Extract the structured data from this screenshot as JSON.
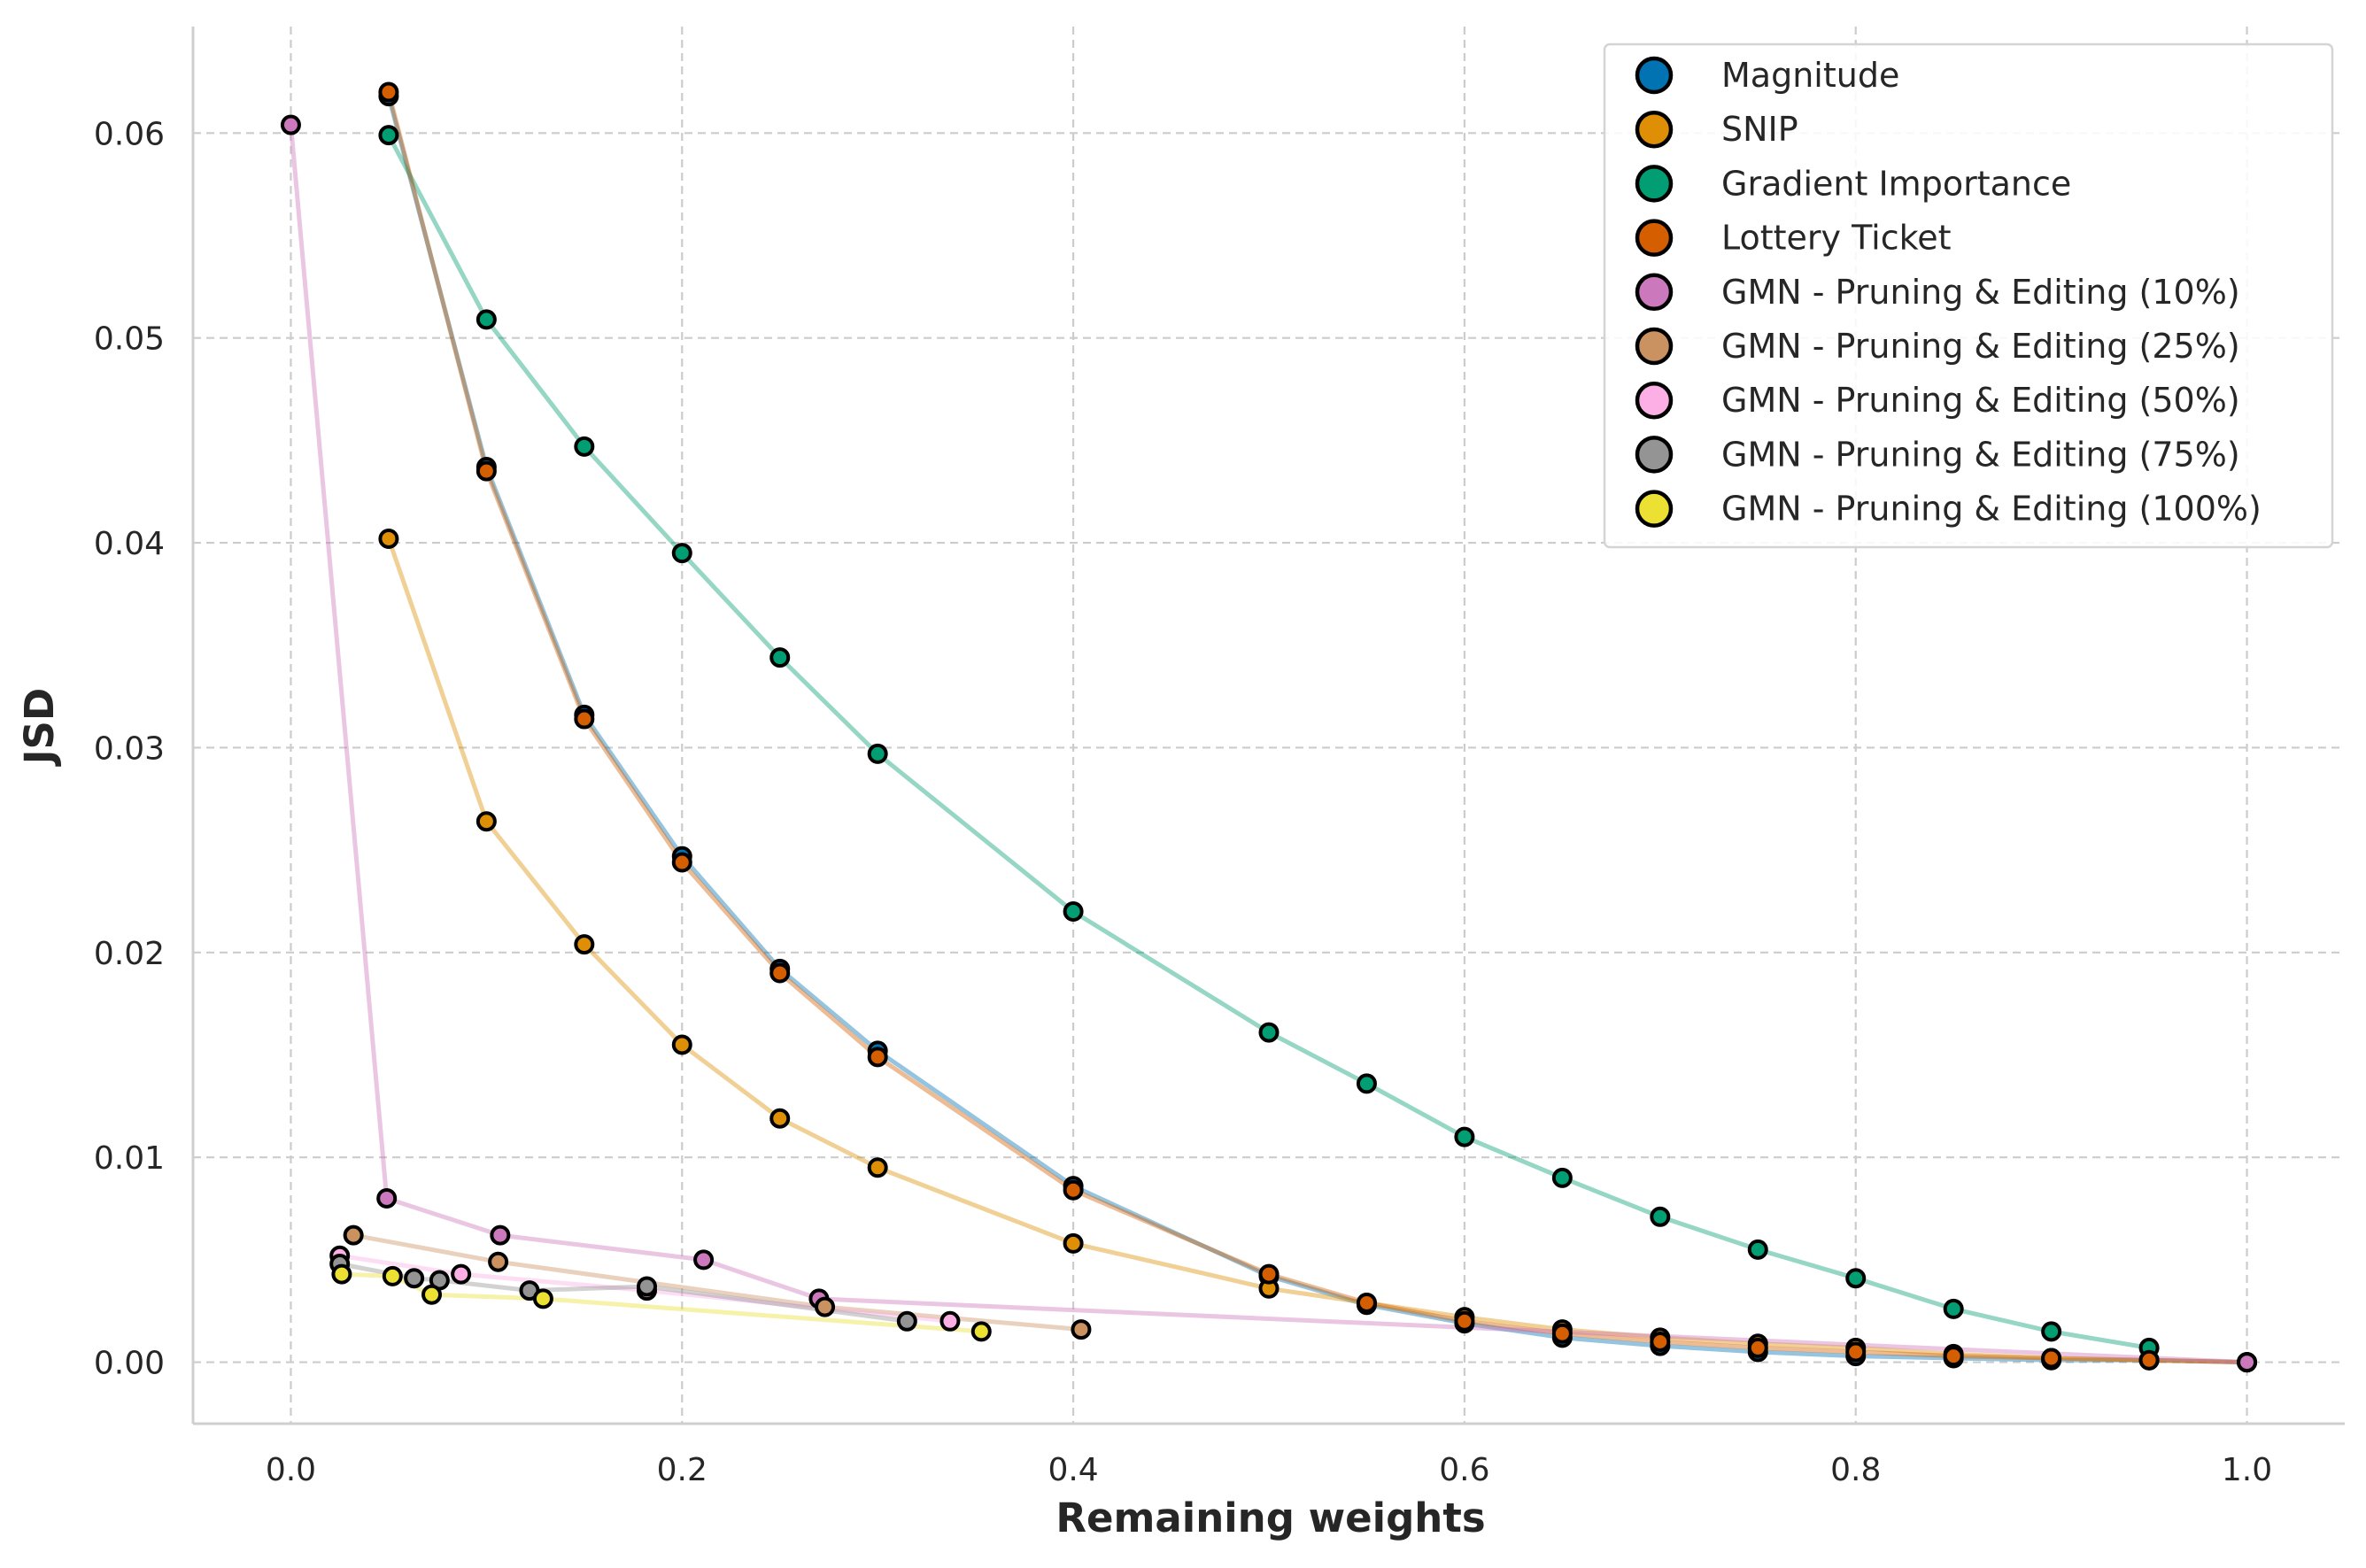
{
  "chart_data": {
    "type": "line",
    "title": "",
    "xlabel": "Remaining weights",
    "ylabel": "JSD",
    "xlim": [
      -0.05,
      1.05
    ],
    "ylim": [
      -0.003,
      0.0652
    ],
    "xticks": [
      0.0,
      0.2,
      0.4,
      0.6,
      0.8,
      1.0
    ],
    "xtick_labels": [
      "0.0",
      "0.2",
      "0.4",
      "0.6",
      "0.8",
      "1.0"
    ],
    "yticks": [
      0.0,
      0.01,
      0.02,
      0.03,
      0.04,
      0.05,
      0.06
    ],
    "ytick_labels": [
      "0.00",
      "0.01",
      "0.02",
      "0.03",
      "0.04",
      "0.05",
      "0.06"
    ],
    "grid": true,
    "legend_position": "top-right",
    "series": [
      {
        "name": "Magnitude",
        "color": "#0173b2",
        "x": [
          0.05,
          0.1,
          0.15,
          0.2,
          0.25,
          0.3,
          0.4,
          0.5,
          0.55,
          0.6,
          0.65,
          0.7,
          0.75,
          0.8,
          0.85,
          0.9,
          0.95,
          1.0
        ],
        "y": [
          0.0618,
          0.0437,
          0.0316,
          0.0247,
          0.0192,
          0.0152,
          0.0086,
          0.0042,
          0.0028,
          0.0019,
          0.0012,
          0.0008,
          0.0005,
          0.0003,
          0.0002,
          0.0001,
          0.0001,
          0.0
        ]
      },
      {
        "name": "SNIP",
        "color": "#de8f05",
        "x": [
          0.05,
          0.1,
          0.15,
          0.2,
          0.25,
          0.3,
          0.4,
          0.5,
          0.55,
          0.6,
          0.65,
          0.7,
          0.75,
          0.8,
          0.85,
          0.9,
          0.95,
          1.0
        ],
        "y": [
          0.0402,
          0.0264,
          0.0204,
          0.0155,
          0.0119,
          0.0095,
          0.0058,
          0.0036,
          0.0029,
          0.0022,
          0.0016,
          0.0012,
          0.0009,
          0.0007,
          0.0004,
          0.0002,
          0.0001,
          0.0
        ]
      },
      {
        "name": "Gradient Importance",
        "color": "#029e73",
        "x": [
          0.05,
          0.1,
          0.15,
          0.2,
          0.25,
          0.3,
          0.4,
          0.5,
          0.55,
          0.6,
          0.65,
          0.7,
          0.75,
          0.8,
          0.85,
          0.9,
          0.95
        ],
        "y": [
          0.0599,
          0.0509,
          0.0447,
          0.0395,
          0.0344,
          0.0297,
          0.022,
          0.0161,
          0.0136,
          0.011,
          0.009,
          0.0071,
          0.0055,
          0.0041,
          0.0026,
          0.0015,
          0.0007
        ]
      },
      {
        "name": "Lottery Ticket",
        "color": "#d55e00",
        "x": [
          0.05,
          0.1,
          0.15,
          0.2,
          0.25,
          0.3,
          0.4,
          0.5,
          0.55,
          0.6,
          0.65,
          0.7,
          0.75,
          0.8,
          0.85,
          0.9,
          0.95,
          1.0
        ],
        "y": [
          0.062,
          0.0435,
          0.0314,
          0.0244,
          0.019,
          0.0149,
          0.0084,
          0.0043,
          0.0029,
          0.002,
          0.0014,
          0.001,
          0.0007,
          0.0005,
          0.0003,
          0.0002,
          0.0001,
          0.0
        ]
      },
      {
        "name": "GMN - Pruning & Editing (10%)",
        "color": "#cc78bc",
        "x": [
          0.0,
          0.049,
          0.107,
          0.211,
          0.27,
          1.0
        ],
        "y": [
          0.0604,
          0.008,
          0.0062,
          0.005,
          0.0031,
          0.0
        ]
      },
      {
        "name": "GMN - Pruning & Editing (25%)",
        "color": "#ca9161",
        "x": [
          0.032,
          0.106,
          0.273,
          0.404
        ],
        "y": [
          0.0062,
          0.0049,
          0.0027,
          0.0016
        ]
      },
      {
        "name": "GMN - Pruning & Editing (50%)",
        "color": "#fbafe4",
        "x": [
          0.025,
          0.087,
          0.182,
          0.337
        ],
        "y": [
          0.0052,
          0.0043,
          0.0035,
          0.002
        ]
      },
      {
        "name": "GMN - Pruning & Editing (75%)",
        "color": "#949494",
        "x": [
          0.025,
          0.063,
          0.076,
          0.122,
          0.182,
          0.315
        ],
        "y": [
          0.0048,
          0.0041,
          0.004,
          0.0035,
          0.0037,
          0.002
        ]
      },
      {
        "name": "GMN - Pruning & Editing (100%)",
        "color": "#ece133",
        "x": [
          0.026,
          0.052,
          0.072,
          0.129,
          0.353
        ],
        "y": [
          0.0043,
          0.0042,
          0.0033,
          0.0031,
          0.0015
        ]
      }
    ]
  }
}
